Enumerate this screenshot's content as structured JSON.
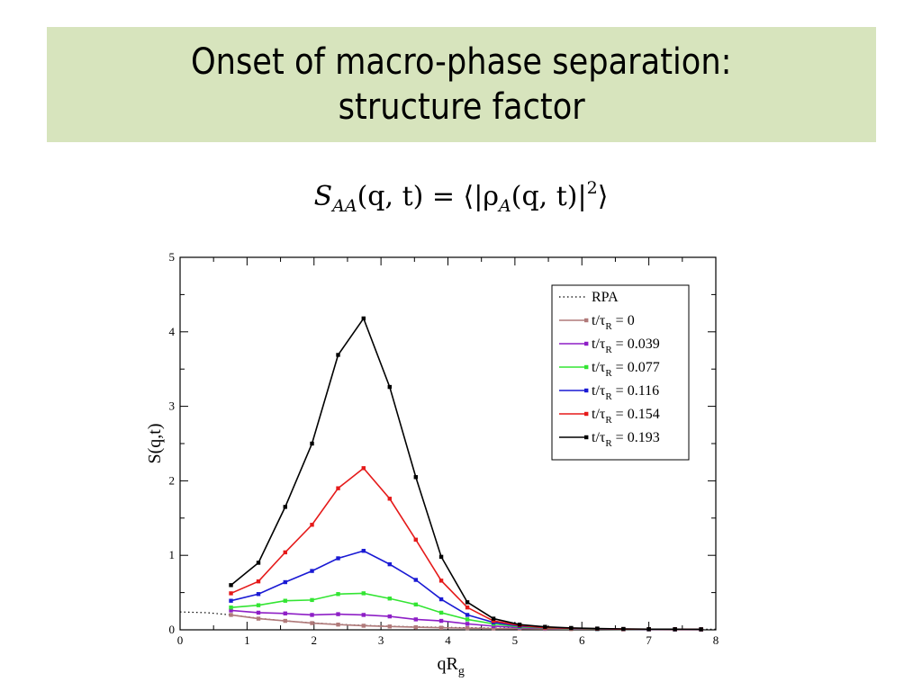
{
  "title": {
    "line1": "Onset of macro-phase separation:",
    "line2": "structure factor"
  },
  "equation": {
    "lhs_symbol": "S",
    "lhs_sub": "AA",
    "lhs_args": "(q, t) = ⟨|ρ",
    "rho_sub": "A",
    "rhs_args": "(q, t)|",
    "power": "2",
    "close": "⟩"
  },
  "chart_data": {
    "type": "line",
    "xlabel": "qR",
    "xlabel_sub": "g",
    "ylabel": "S(q,t)",
    "xlim": [
      0,
      8
    ],
    "ylim": [
      0,
      5
    ],
    "x_ticks": [
      "0",
      "1",
      "2",
      "3",
      "4",
      "5",
      "6",
      "7",
      "8"
    ],
    "y_ticks": [
      "0",
      "1",
      "2",
      "3",
      "4",
      "5"
    ],
    "grid": false,
    "legend_position": "top-right",
    "x": [
      0.76,
      1.17,
      1.57,
      1.97,
      2.36,
      2.74,
      3.13,
      3.52,
      3.9,
      4.29,
      4.68,
      5.07,
      5.45,
      5.84,
      6.23,
      6.62,
      7.0,
      7.39,
      7.78
    ],
    "rpa": {
      "name": "RPA",
      "x": [
        0.0,
        0.4,
        0.76,
        1.17,
        1.57,
        1.97,
        2.36,
        2.74,
        3.13,
        3.52,
        3.9,
        4.29,
        4.68,
        5.07,
        5.45,
        5.84,
        6.23,
        6.62,
        7.0,
        7.39,
        7.78,
        8.0
      ],
      "values": [
        0.24,
        0.23,
        0.2,
        0.155,
        0.12,
        0.093,
        0.073,
        0.06,
        0.048,
        0.04,
        0.034,
        0.028,
        0.024,
        0.02,
        0.017,
        0.015,
        0.013,
        0.011,
        0.01,
        0.009,
        0.008,
        0.008
      ]
    },
    "series": [
      {
        "name_prefix": "t/τ",
        "name_sub": "R",
        "name_suffix": " = 0",
        "color": "#b07a7a",
        "values": [
          0.2,
          0.15,
          0.12,
          0.09,
          0.07,
          0.055,
          0.045,
          0.035,
          0.028,
          0.022,
          0.018,
          0.015,
          0.012,
          0.01,
          0.009,
          0.008,
          0.007,
          0.006,
          0.005
        ]
      },
      {
        "name_prefix": "t/τ",
        "name_sub": "R",
        "name_suffix": " = 0.039",
        "color": "#8e1fc6",
        "values": [
          0.26,
          0.23,
          0.22,
          0.2,
          0.21,
          0.2,
          0.18,
          0.14,
          0.12,
          0.08,
          0.05,
          0.03,
          0.02,
          0.015,
          0.01,
          0.008,
          0.007,
          0.006,
          0.005
        ]
      },
      {
        "name_prefix": "t/τ",
        "name_sub": "R",
        "name_suffix": " = 0.077",
        "color": "#33e533",
        "values": [
          0.3,
          0.33,
          0.39,
          0.4,
          0.48,
          0.49,
          0.42,
          0.34,
          0.23,
          0.14,
          0.08,
          0.04,
          0.025,
          0.015,
          0.01,
          0.008,
          0.007,
          0.006,
          0.005
        ]
      },
      {
        "name_prefix": "t/τ",
        "name_sub": "R",
        "name_suffix": " = 0.116",
        "color": "#1a1ad4",
        "values": [
          0.39,
          0.48,
          0.64,
          0.79,
          0.96,
          1.06,
          0.88,
          0.67,
          0.41,
          0.2,
          0.1,
          0.05,
          0.03,
          0.018,
          0.012,
          0.009,
          0.007,
          0.006,
          0.005
        ]
      },
      {
        "name_prefix": "t/τ",
        "name_sub": "R",
        "name_suffix": " = 0.154",
        "color": "#e51a1a",
        "values": [
          0.49,
          0.65,
          1.04,
          1.41,
          1.9,
          2.17,
          1.76,
          1.21,
          0.66,
          0.3,
          0.12,
          0.06,
          0.03,
          0.02,
          0.014,
          0.01,
          0.008,
          0.007,
          0.006
        ]
      },
      {
        "name_prefix": "t/τ",
        "name_sub": "R",
        "name_suffix": " = 0.193",
        "color": "#000000",
        "values": [
          0.6,
          0.9,
          1.65,
          2.5,
          3.69,
          4.18,
          3.26,
          2.05,
          0.98,
          0.37,
          0.15,
          0.07,
          0.04,
          0.025,
          0.017,
          0.012,
          0.009,
          0.008,
          0.007
        ]
      }
    ]
  }
}
